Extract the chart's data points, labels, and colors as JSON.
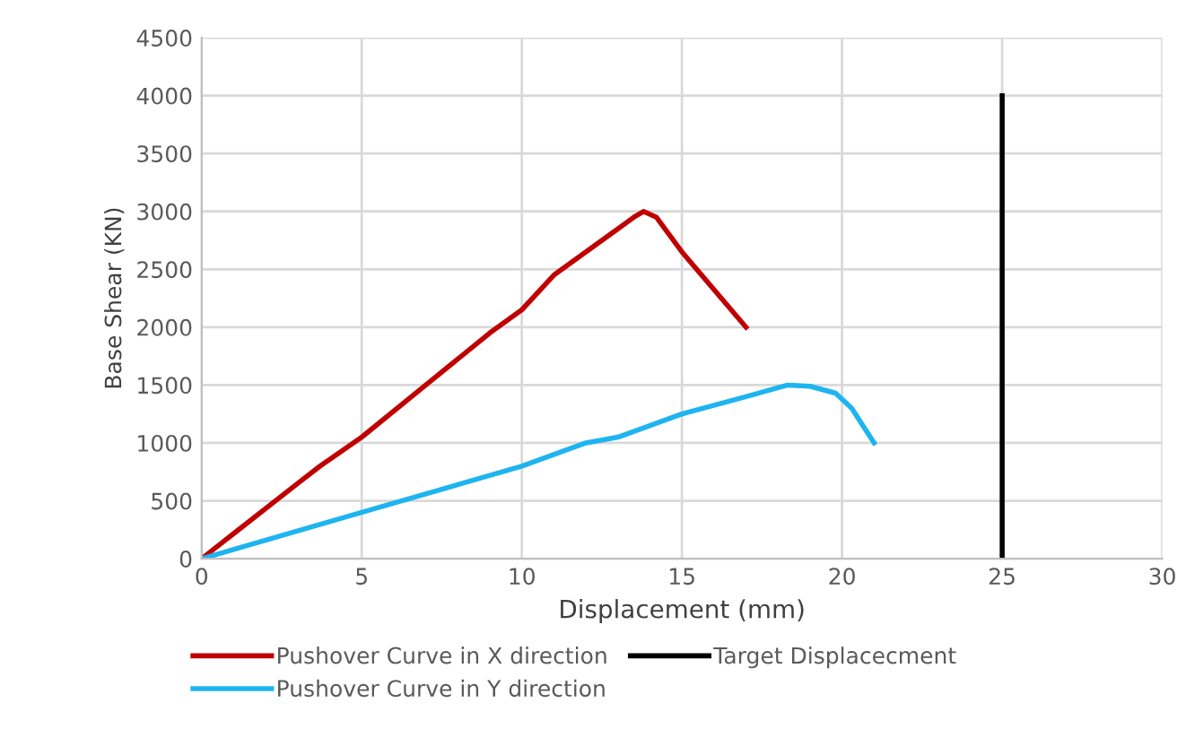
{
  "chart_data": {
    "type": "line",
    "xlabel": "Displacement (mm)",
    "ylabel": "Base Shear (KN)",
    "xlim": [
      0,
      30
    ],
    "xticks": [
      0,
      5,
      10,
      15,
      20,
      25,
      30
    ],
    "ylim": [
      0,
      4500
    ],
    "yticks": [
      0,
      500,
      1000,
      1500,
      2000,
      2500,
      3000,
      3500,
      4000,
      4500
    ],
    "grid": true,
    "legend": "bottom",
    "marker": "none",
    "line_style": "solid",
    "series": [
      {
        "name": "Pushover Curve in X direction",
        "color": "#c00000",
        "x": [
          0,
          3,
          3.7,
          5,
          7,
          9,
          10,
          11,
          13,
          13.5,
          13.8,
          14.2,
          15,
          17
        ],
        "values": [
          0,
          650,
          800,
          1050,
          1500,
          1950,
          2150,
          2450,
          2850,
          2950,
          3000,
          2950,
          2650,
          2000
        ]
      },
      {
        "name": "Pushover Curve in Y direction",
        "color": "#1eb4f0",
        "x": [
          0,
          5,
          10,
          12,
          13,
          15,
          17,
          18.3,
          19,
          19.8,
          20.3,
          21
        ],
        "values": [
          0,
          400,
          800,
          1000,
          1050,
          1250,
          1400,
          1500,
          1490,
          1430,
          1300,
          1000
        ]
      },
      {
        "name": "Target Displacecment",
        "color": "#000000",
        "x": [
          25,
          25
        ],
        "values": [
          0,
          4000
        ]
      }
    ]
  }
}
